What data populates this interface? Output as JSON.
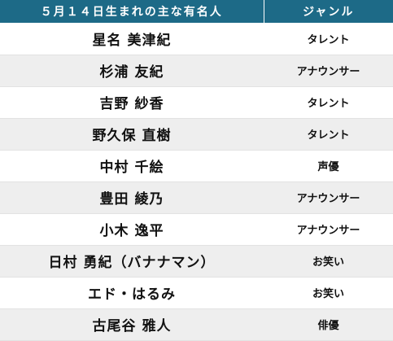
{
  "table": {
    "headers": {
      "name": "５月１４日生まれの主な有名人",
      "genre": "ジャンル"
    },
    "rows": [
      {
        "name": "星名 美津紀",
        "genre": "タレント"
      },
      {
        "name": "杉浦 友紀",
        "genre": "アナウンサー"
      },
      {
        "name": "吉野 紗香",
        "genre": "タレント"
      },
      {
        "name": "野久保 直樹",
        "genre": "タレント"
      },
      {
        "name": "中村 千絵",
        "genre": "声優"
      },
      {
        "name": "豊田 綾乃",
        "genre": "アナウンサー"
      },
      {
        "name": "小木 逸平",
        "genre": "アナウンサー"
      },
      {
        "name": "日村 勇紀（バナナマン）",
        "genre": "お笑い"
      },
      {
        "name": "エド・はるみ",
        "genre": "お笑い"
      },
      {
        "name": "古尾谷 雅人",
        "genre": "俳優"
      }
    ]
  }
}
